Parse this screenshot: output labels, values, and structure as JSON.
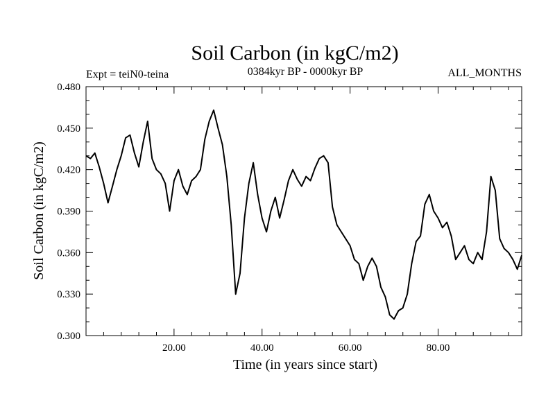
{
  "chart_data": {
    "type": "line",
    "title": "Soil Carbon (in kgC/m2)",
    "subtitle": "0384kyr BP - 0000kyr BP",
    "left_label": "Expt = teiN0-teina",
    "right_label": "ALL_MONTHS",
    "xlabel": "Time (in years since start)",
    "ylabel": "Soil Carbon (in kgC/m2)",
    "xlim": [
      0,
      99
    ],
    "ylim": [
      0.3,
      0.48
    ],
    "xticks": [
      20,
      40,
      60,
      80
    ],
    "xtick_labels": [
      "20.00",
      "40.00",
      "60.00",
      "80.00"
    ],
    "yticks": [
      0.3,
      0.33,
      0.36,
      0.39,
      0.42,
      0.45,
      0.48
    ],
    "ytick_labels": [
      "0.300",
      "0.330",
      "0.360",
      "0.390",
      "0.420",
      "0.450",
      "0.480"
    ],
    "line_color": "#000000",
    "series": [
      {
        "name": "Soil Carbon",
        "x": [
          0,
          1,
          2,
          3,
          4,
          5,
          6,
          7,
          8,
          9,
          10,
          11,
          12,
          13,
          14,
          15,
          16,
          17,
          18,
          19,
          20,
          21,
          22,
          23,
          24,
          25,
          26,
          27,
          28,
          29,
          30,
          31,
          32,
          33,
          34,
          35,
          36,
          37,
          38,
          39,
          40,
          41,
          42,
          43,
          44,
          45,
          46,
          47,
          48,
          49,
          50,
          51,
          52,
          53,
          54,
          55,
          56,
          57,
          58,
          59,
          60,
          61,
          62,
          63,
          64,
          65,
          66,
          67,
          68,
          69,
          70,
          71,
          72,
          73,
          74,
          75,
          76,
          77,
          78,
          79,
          80,
          81,
          82,
          83,
          84,
          85,
          86,
          87,
          88,
          89,
          90,
          91,
          92,
          93,
          94,
          95,
          96,
          97,
          98,
          99
        ],
        "values": [
          0.43,
          0.428,
          0.432,
          0.422,
          0.41,
          0.396,
          0.408,
          0.42,
          0.43,
          0.443,
          0.445,
          0.432,
          0.422,
          0.44,
          0.455,
          0.428,
          0.42,
          0.417,
          0.41,
          0.39,
          0.412,
          0.42,
          0.408,
          0.402,
          0.412,
          0.415,
          0.42,
          0.442,
          0.455,
          0.463,
          0.45,
          0.438,
          0.415,
          0.38,
          0.33,
          0.345,
          0.385,
          0.41,
          0.425,
          0.402,
          0.385,
          0.375,
          0.39,
          0.4,
          0.385,
          0.398,
          0.412,
          0.42,
          0.413,
          0.408,
          0.415,
          0.412,
          0.421,
          0.428,
          0.43,
          0.425,
          0.393,
          0.38,
          0.375,
          0.37,
          0.365,
          0.355,
          0.352,
          0.34,
          0.35,
          0.356,
          0.35,
          0.335,
          0.328,
          0.315,
          0.312,
          0.318,
          0.32,
          0.33,
          0.352,
          0.368,
          0.372,
          0.395,
          0.402,
          0.39,
          0.385,
          0.378,
          0.382,
          0.372,
          0.355,
          0.36,
          0.365,
          0.355,
          0.352,
          0.36,
          0.355,
          0.375,
          0.415,
          0.405,
          0.37,
          0.363,
          0.36,
          0.355,
          0.348,
          0.358
        ]
      }
    ]
  }
}
